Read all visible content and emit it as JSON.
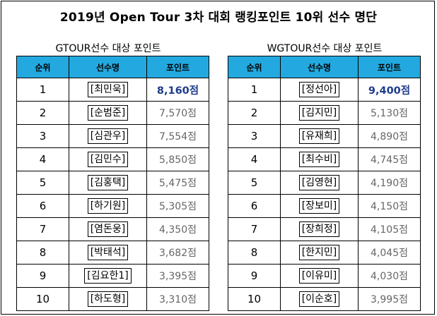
{
  "title": "2019년 Open Tour 3차 대회 랭킹포인트 10위 선수 명단",
  "left_table": {
    "caption": "GTOUR선수 대상 포인트",
    "headers": [
      "순위",
      "선수명",
      "포인트"
    ],
    "rows": [
      {
        "rank": "1",
        "name": "[최민욱]",
        "points": "8,160점"
      },
      {
        "rank": "2",
        "name": "[순범준]",
        "points": "7,570점"
      },
      {
        "rank": "3",
        "name": "[심관우]",
        "points": "7,554점"
      },
      {
        "rank": "4",
        "name": "[김민수]",
        "points": "5,850점"
      },
      {
        "rank": "5",
        "name": "[김홍택]",
        "points": "5,475점"
      },
      {
        "rank": "6",
        "name": "[하기원]",
        "points": "5,305점"
      },
      {
        "rank": "7",
        "name": "[염돈웅]",
        "points": "4,350점"
      },
      {
        "rank": "8",
        "name": "[박태석]",
        "points": "3,682점"
      },
      {
        "rank": "9",
        "name": "[김요한1]",
        "points": "3,395점"
      },
      {
        "rank": "10",
        "name": "[하도형]",
        "points": "3,310점"
      }
    ]
  },
  "right_table": {
    "caption": "WGTOUR선수 대상 포인트",
    "headers": [
      "순위",
      "선수명",
      "포인트"
    ],
    "rows": [
      {
        "rank": "1",
        "name": "[정선아]",
        "points": "9,400점"
      },
      {
        "rank": "2",
        "name": "[김지민]",
        "points": "5,130점"
      },
      {
        "rank": "3",
        "name": "[유재희]",
        "points": "4,890점"
      },
      {
        "rank": "4",
        "name": "[최수비]",
        "points": "4,745점"
      },
      {
        "rank": "5",
        "name": "[김영현]",
        "points": "4,190점"
      },
      {
        "rank": "6",
        "name": "[장보미]",
        "points": "4,150점"
      },
      {
        "rank": "7",
        "name": "[장희정]",
        "points": "4,105점"
      },
      {
        "rank": "8",
        "name": "[한지민]",
        "points": "4,045점"
      },
      {
        "rank": "9",
        "name": "[이유미]",
        "points": "4,030점"
      },
      {
        "rank": "10",
        "name": "[이순호]",
        "points": "3,995점"
      }
    ]
  },
  "colors": {
    "header_bg": "#23a9e0",
    "top_points": "#1f3c8c",
    "points_text": "#666666"
  }
}
